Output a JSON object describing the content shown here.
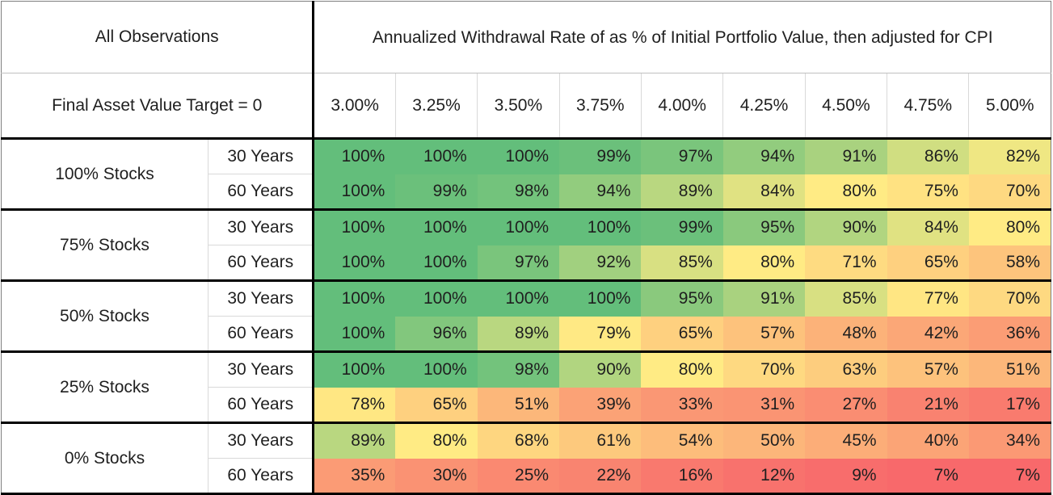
{
  "header": {
    "left_title": "All Observations",
    "main_title": "Annualized Withdrawal Rate of as % of Initial Portfolio Value, then adjusted for CPI",
    "left_subtitle": "Final Asset Value Target = 0"
  },
  "chart_data": {
    "type": "heatmap",
    "title": "Annualized Withdrawal Rate of as % of Initial Portfolio Value, then adjusted for CPI",
    "corner_label": "All Observations",
    "row_header_label": "Final Asset Value Target = 0",
    "unit": "%",
    "columns": [
      "3.00%",
      "3.25%",
      "3.50%",
      "3.75%",
      "4.00%",
      "4.25%",
      "4.50%",
      "4.75%",
      "5.00%"
    ],
    "rows": [
      {
        "group": "100% Stocks",
        "horizon": "30 Years",
        "values": [
          100,
          100,
          100,
          99,
          97,
          94,
          91,
          86,
          82
        ]
      },
      {
        "group": "100% Stocks",
        "horizon": "60 Years",
        "values": [
          100,
          99,
          98,
          94,
          89,
          84,
          80,
          75,
          70
        ]
      },
      {
        "group": "75% Stocks",
        "horizon": "30 Years",
        "values": [
          100,
          100,
          100,
          100,
          99,
          95,
          90,
          84,
          80
        ]
      },
      {
        "group": "75% Stocks",
        "horizon": "60 Years",
        "values": [
          100,
          100,
          97,
          92,
          85,
          80,
          71,
          65,
          58
        ]
      },
      {
        "group": "50% Stocks",
        "horizon": "30 Years",
        "values": [
          100,
          100,
          100,
          100,
          95,
          91,
          85,
          77,
          70
        ]
      },
      {
        "group": "50% Stocks",
        "horizon": "60 Years",
        "values": [
          100,
          96,
          89,
          79,
          65,
          57,
          48,
          42,
          36
        ]
      },
      {
        "group": "25% Stocks",
        "horizon": "30 Years",
        "values": [
          100,
          100,
          98,
          90,
          80,
          70,
          63,
          57,
          51
        ]
      },
      {
        "group": "25% Stocks",
        "horizon": "60 Years",
        "values": [
          78,
          65,
          51,
          39,
          33,
          31,
          27,
          21,
          17
        ]
      },
      {
        "group": "0% Stocks",
        "horizon": "30 Years",
        "values": [
          89,
          80,
          68,
          61,
          54,
          50,
          45,
          40,
          34
        ]
      },
      {
        "group": "0% Stocks",
        "horizon": "60 Years",
        "values": [
          35,
          30,
          25,
          22,
          16,
          12,
          9,
          7,
          7
        ]
      }
    ],
    "color_scale": {
      "min_color": "#F8696B",
      "mid_color": "#FFEB84",
      "max_color": "#63BE7B",
      "min_value": 7,
      "mid_value": 80,
      "max_value": 100
    }
  }
}
